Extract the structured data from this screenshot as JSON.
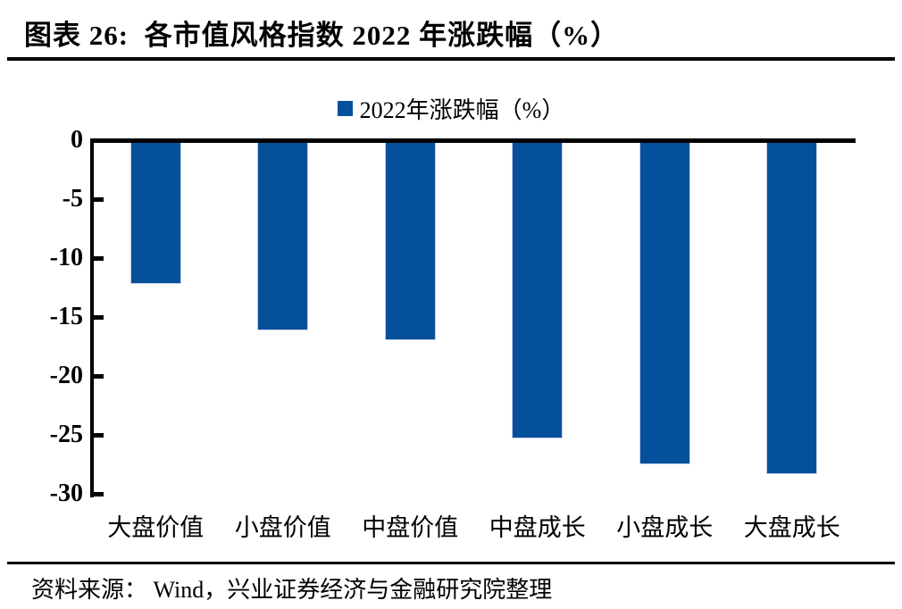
{
  "title": "图表 26:  各市值风格指数 2022 年涨跌幅（%）",
  "legend": {
    "label": "2022年涨跌幅（%）"
  },
  "source": "资料来源： Wind，兴业证券经济与金融研究院整理",
  "colors": {
    "bar": "#05509b",
    "axis": "#000000",
    "bar_edge": "#c7d2ea"
  },
  "chart_data": {
    "type": "bar",
    "title": "各市值风格指数 2022 年涨跌幅（%）",
    "series_name": "2022年涨跌幅（%）",
    "categories": [
      "大盘价值",
      "小盘价值",
      "中盘价值",
      "中盘成长",
      "小盘成长",
      "大盘成长"
    ],
    "values": [
      -12.2,
      -16.1,
      -17.0,
      -25.3,
      -27.5,
      -28.3
    ],
    "xlabel": "",
    "ylabel": "",
    "ylim": [
      -30,
      0
    ],
    "yticks": [
      0,
      -5,
      -10,
      -15,
      -20,
      -25,
      -30
    ],
    "grid": false,
    "legend_position": "top-center",
    "bar_color": "#05509b"
  }
}
